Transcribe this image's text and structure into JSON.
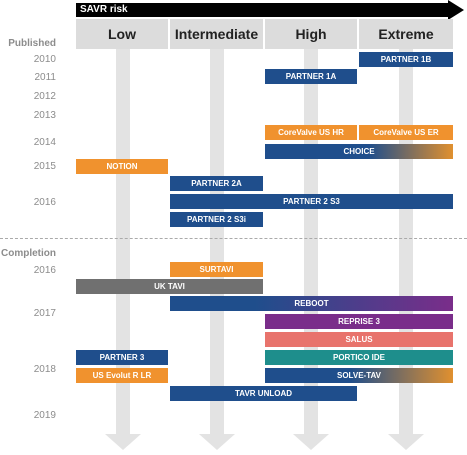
{
  "header": {
    "title": "SAVR risk"
  },
  "columns": [
    {
      "label": "Low"
    },
    {
      "label": "Intermediate"
    },
    {
      "label": "High"
    },
    {
      "label": "Extreme"
    }
  ],
  "sections": {
    "published": "Published",
    "completion": "Completion"
  },
  "years_published": [
    "2010",
    "2011",
    "2012",
    "2013",
    "2014",
    "2015",
    "2016"
  ],
  "years_completion": [
    "2016",
    "2017",
    "2018",
    "2019"
  ],
  "colors": {
    "blue": "#1f4e8c",
    "orange": "#f0922e",
    "gray": "#707070",
    "purple": "#7a2d8a",
    "salmon": "#e8736c",
    "teal": "#1e8e8c",
    "dark": "#000000",
    "arrow": "#e3e3e3"
  },
  "trials": [
    {
      "label": "PARTNER 1B",
      "from": "Extreme",
      "to": "Extreme",
      "color": "blue"
    },
    {
      "label": "PARTNER 1A",
      "from": "High",
      "to": "High",
      "color": "blue"
    },
    {
      "label": "CoreValve US HR",
      "from": "High",
      "to": "High",
      "color": "orange"
    },
    {
      "label": "CoreValve US ER",
      "from": "Extreme",
      "to": "Extreme",
      "color": "orange"
    },
    {
      "label": "CHOICE",
      "from": "High",
      "to": "Extreme",
      "color": "blue-orange"
    },
    {
      "label": "NOTION",
      "from": "Low",
      "to": "Low",
      "color": "orange"
    },
    {
      "label": "PARTNER 2A",
      "from": "Intermediate",
      "to": "Intermediate",
      "color": "blue"
    },
    {
      "label": "PARTNER 2 S3",
      "from": "Intermediate",
      "to": "Extreme",
      "color": "blue"
    },
    {
      "label": "PARTNER 2 S3i",
      "from": "Intermediate",
      "to": "Intermediate",
      "color": "blue"
    },
    {
      "label": "SURTAVI",
      "from": "Intermediate",
      "to": "Intermediate",
      "color": "orange"
    },
    {
      "label": "UK TAVI",
      "from": "Low",
      "to": "Intermediate",
      "color": "gray"
    },
    {
      "label": "REBOOT",
      "from": "Intermediate",
      "to": "Extreme",
      "color": "blue-purple"
    },
    {
      "label": "REPRISE 3",
      "from": "High",
      "to": "Extreme",
      "color": "purple"
    },
    {
      "label": "SALUS",
      "from": "High",
      "to": "Extreme",
      "color": "salmon"
    },
    {
      "label": "PARTNER 3",
      "from": "Low",
      "to": "Low",
      "color": "blue"
    },
    {
      "label": "PORTICO IDE",
      "from": "High",
      "to": "Extreme",
      "color": "teal"
    },
    {
      "label": "US Evolut R LR",
      "from": "Low",
      "to": "Low",
      "color": "orange"
    },
    {
      "label": "SOLVE-TAV",
      "from": "High",
      "to": "Extreme",
      "color": "blue-orange"
    },
    {
      "label": "TAVR UNLOAD",
      "from": "Intermediate",
      "to": "High",
      "color": "blue"
    }
  ]
}
